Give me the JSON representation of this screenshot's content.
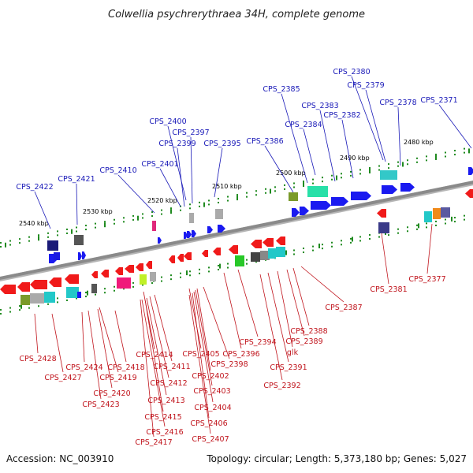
{
  "title": "Colwellia psychrerythraea 34H, complete genome",
  "accession": "Accession: NC_003910",
  "topology": "Topology: circular; Length: 5,373,180 bp; Genes: 5,027",
  "colors": {
    "backbone": "#8a8a8a",
    "forward_gene": "#1a1af0",
    "reverse_gene": "#f01a1a",
    "top_label": "#1a1ab8",
    "bottom_label": "#c0141c",
    "tick": "#1f8a1f"
  },
  "kbp_labels": [
    {
      "id": "k2480",
      "text": "2480 kbp"
    },
    {
      "id": "k2490",
      "text": "2490 kbp"
    },
    {
      "id": "k2500",
      "text": "2500 kbp"
    },
    {
      "id": "k2510",
      "text": "2510 kbp"
    },
    {
      "id": "k2520",
      "text": "2520 kbp"
    },
    {
      "id": "k2530",
      "text": "2530 kbp"
    },
    {
      "id": "k2540",
      "text": "2540 kbp"
    }
  ],
  "top_labels": [
    {
      "id": "t2380",
      "text": "CPS_2380"
    },
    {
      "id": "t2379",
      "text": "CPS_2379"
    },
    {
      "id": "t2385",
      "text": "CPS_2385"
    },
    {
      "id": "t2378",
      "text": "CPS_2378"
    },
    {
      "id": "t2371",
      "text": "CPS_2371"
    },
    {
      "id": "t2383",
      "text": "CPS_2383"
    },
    {
      "id": "t2382",
      "text": "CPS_2382"
    },
    {
      "id": "t2384",
      "text": "CPS_2384"
    },
    {
      "id": "t2400",
      "text": "CPS_2400"
    },
    {
      "id": "t2397",
      "text": "CPS_2397"
    },
    {
      "id": "t2399",
      "text": "CPS_2399"
    },
    {
      "id": "t2395",
      "text": "CPS_2395"
    },
    {
      "id": "t2386",
      "text": "CPS_2386"
    },
    {
      "id": "t2401",
      "text": "CPS_2401"
    },
    {
      "id": "t2410",
      "text": "CPS_2410"
    },
    {
      "id": "t2421",
      "text": "CPS_2421"
    },
    {
      "id": "t2422",
      "text": "CPS_2422"
    }
  ],
  "bottom_labels": [
    {
      "id": "b2381",
      "text": "CPS_2381"
    },
    {
      "id": "b2377",
      "text": "CPS_2377"
    },
    {
      "id": "b2387",
      "text": "CPS_2387"
    },
    {
      "id": "b2388",
      "text": "CPS_2388"
    },
    {
      "id": "b2389",
      "text": "CPS_2389"
    },
    {
      "id": "b2394",
      "text": "CPS_2394"
    },
    {
      "id": "bglk",
      "text": "glk"
    },
    {
      "id": "b2396",
      "text": "CPS_2396"
    },
    {
      "id": "b2405",
      "text": "CPS_2405"
    },
    {
      "id": "b2414",
      "text": "CPS_2414"
    },
    {
      "id": "b2398",
      "text": "CPS_2398"
    },
    {
      "id": "b2391",
      "text": "CPS_2391"
    },
    {
      "id": "b2411",
      "text": "CPS_2411"
    },
    {
      "id": "b2402",
      "text": "CPS_2402"
    },
    {
      "id": "b2392",
      "text": "CPS_2392"
    },
    {
      "id": "b2412",
      "text": "CPS_2412"
    },
    {
      "id": "b2403",
      "text": "CPS_2403"
    },
    {
      "id": "b2413",
      "text": "CPS_2413"
    },
    {
      "id": "b2404",
      "text": "CPS_2404"
    },
    {
      "id": "b2415",
      "text": "CPS_2415"
    },
    {
      "id": "b2406",
      "text": "CPS_2406"
    },
    {
      "id": "b2416",
      "text": "CPS_2416"
    },
    {
      "id": "b2407",
      "text": "CPS_2407"
    },
    {
      "id": "b2417",
      "text": "CPS_2417"
    },
    {
      "id": "b2428",
      "text": "CPS_2428"
    },
    {
      "id": "b2424",
      "text": "CPS_2424"
    },
    {
      "id": "b2418",
      "text": "CPS_2418"
    },
    {
      "id": "b2427",
      "text": "CPS_2427"
    },
    {
      "id": "b2419",
      "text": "CPS_2419"
    },
    {
      "id": "b2420",
      "text": "CPS_2420"
    },
    {
      "id": "b2423",
      "text": "CPS_2423"
    }
  ]
}
